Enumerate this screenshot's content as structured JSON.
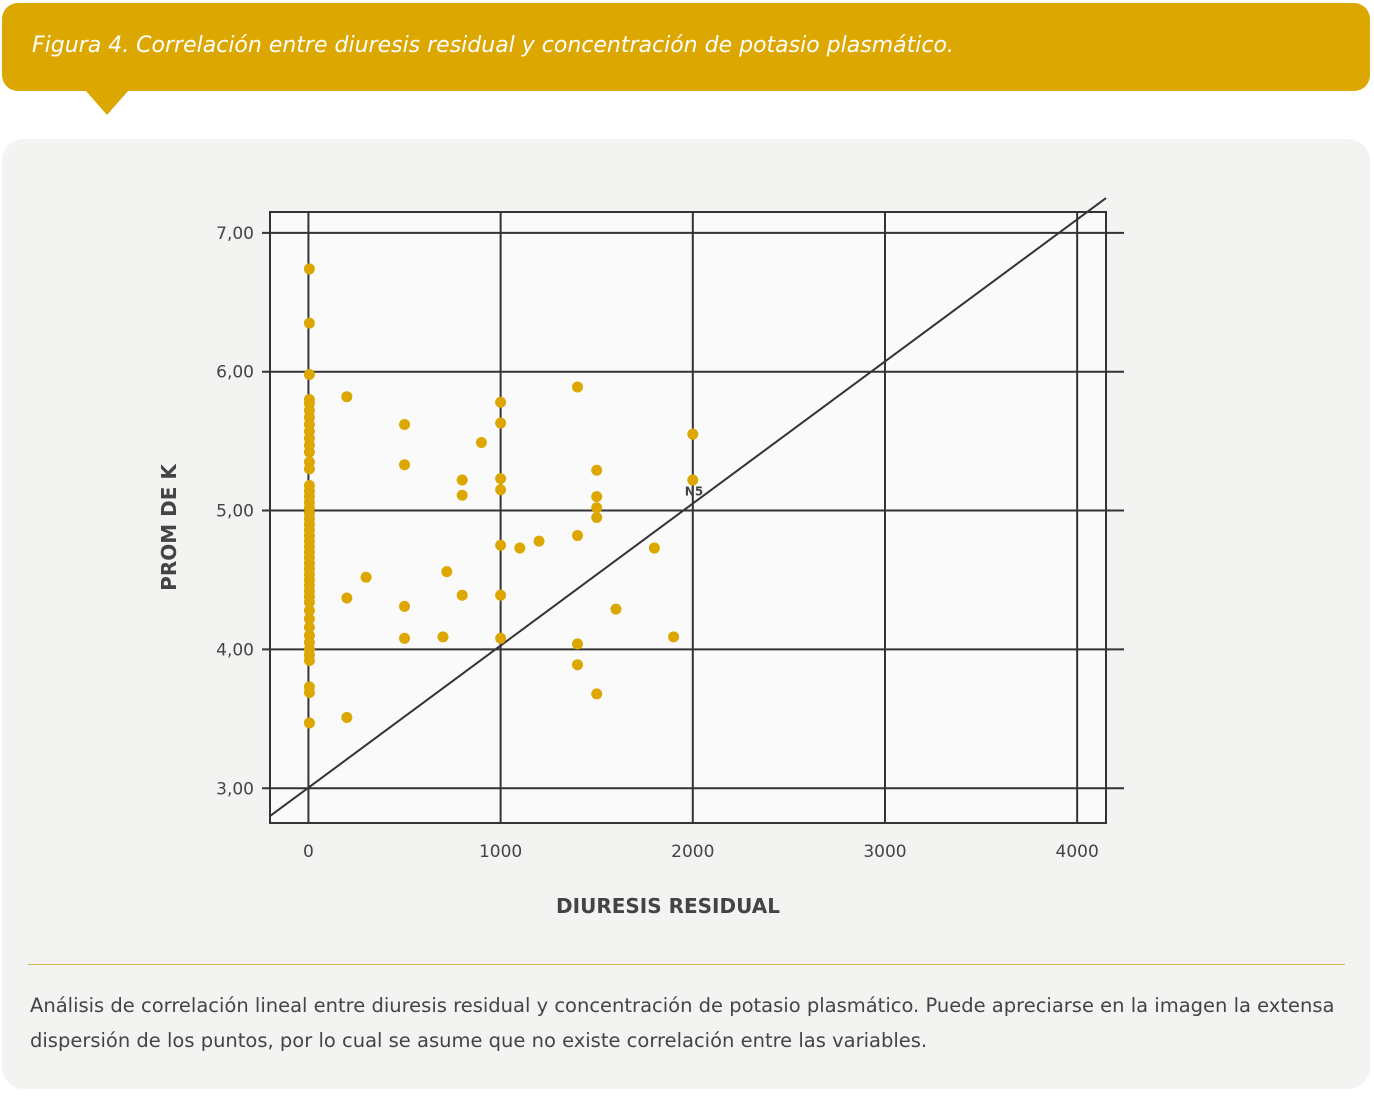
{
  "figure_title": "Figura 4. Correlación entre diuresis residual y concentración de potasio plasmático.",
  "caption": "Análisis de correlación lineal entre diuresis residual y concentración de potasio plasmático. Puede apreciarse en la imagen la extensa dispersión de los puntos, por lo cual se asume que no existe correlación entre las variables.",
  "colors": {
    "banner": "#dca700",
    "points": "#dca700",
    "panel": "#f3f3f1",
    "lines": "#333333"
  },
  "chart_data": {
    "type": "scatter",
    "xlabel": "DIURESIS RESIDUAL",
    "ylabel": "PROM DE K",
    "xlim": [
      -200,
      4150
    ],
    "ylim": [
      2.75,
      7.15
    ],
    "x_ticks": [
      0,
      1000,
      2000,
      3000,
      4000
    ],
    "x_tick_labels": [
      "0",
      "1000",
      "2000",
      "3000",
      "4000"
    ],
    "y_ticks": [
      3,
      4,
      5,
      6,
      7
    ],
    "y_tick_labels": [
      "3,00",
      "4,00",
      "5,00",
      "6,00",
      "7,00"
    ],
    "grid": true,
    "reference_line": {
      "from": [
        -200,
        2.8
      ],
      "to": [
        4150,
        7.25
      ]
    },
    "annotation": {
      "text": "N5",
      "x": 2000,
      "y": 5.08
    },
    "points": [
      [
        5,
        6.74
      ],
      [
        5,
        6.35
      ],
      [
        5,
        5.98
      ],
      [
        5,
        5.8
      ],
      [
        5,
        5.77
      ],
      [
        5,
        5.72
      ],
      [
        5,
        5.67
      ],
      [
        5,
        5.62
      ],
      [
        5,
        5.57
      ],
      [
        5,
        5.52
      ],
      [
        5,
        5.47
      ],
      [
        5,
        5.42
      ],
      [
        5,
        5.35
      ],
      [
        5,
        5.3
      ],
      [
        5,
        5.18
      ],
      [
        5,
        5.14
      ],
      [
        5,
        5.1
      ],
      [
        5,
        5.06
      ],
      [
        5,
        5.02
      ],
      [
        5,
        4.98
      ],
      [
        5,
        4.94
      ],
      [
        5,
        4.9
      ],
      [
        5,
        4.86
      ],
      [
        5,
        4.82
      ],
      [
        5,
        4.78
      ],
      [
        5,
        4.74
      ],
      [
        5,
        4.7
      ],
      [
        5,
        4.66
      ],
      [
        5,
        4.62
      ],
      [
        5,
        4.58
      ],
      [
        5,
        4.54
      ],
      [
        5,
        4.5
      ],
      [
        5,
        4.46
      ],
      [
        5,
        4.42
      ],
      [
        5,
        4.38
      ],
      [
        5,
        4.34
      ],
      [
        5,
        4.28
      ],
      [
        5,
        4.22
      ],
      [
        5,
        4.16
      ],
      [
        5,
        4.1
      ],
      [
        5,
        4.05
      ],
      [
        5,
        4.0
      ],
      [
        5,
        3.96
      ],
      [
        5,
        3.92
      ],
      [
        5,
        3.73
      ],
      [
        5,
        3.69
      ],
      [
        5,
        3.47
      ],
      [
        200,
        5.82
      ],
      [
        200,
        4.37
      ],
      [
        200,
        3.51
      ],
      [
        300,
        4.52
      ],
      [
        500,
        5.62
      ],
      [
        500,
        5.33
      ],
      [
        500,
        4.31
      ],
      [
        500,
        4.08
      ],
      [
        700,
        4.09
      ],
      [
        720,
        4.56
      ],
      [
        800,
        5.22
      ],
      [
        800,
        5.11
      ],
      [
        800,
        4.39
      ],
      [
        900,
        5.49
      ],
      [
        1000,
        5.78
      ],
      [
        1000,
        5.63
      ],
      [
        1000,
        5.23
      ],
      [
        1000,
        5.15
      ],
      [
        1000,
        4.75
      ],
      [
        1000,
        4.39
      ],
      [
        1000,
        4.08
      ],
      [
        1100,
        4.73
      ],
      [
        1200,
        4.78
      ],
      [
        1400,
        5.89
      ],
      [
        1400,
        4.82
      ],
      [
        1400,
        4.04
      ],
      [
        1400,
        3.89
      ],
      [
        1500,
        5.29
      ],
      [
        1500,
        5.1
      ],
      [
        1500,
        5.02
      ],
      [
        1500,
        4.95
      ],
      [
        1500,
        3.68
      ],
      [
        1600,
        4.29
      ],
      [
        1800,
        4.73
      ],
      [
        1900,
        4.09
      ],
      [
        2000,
        5.55
      ],
      [
        2000,
        5.22
      ]
    ]
  }
}
